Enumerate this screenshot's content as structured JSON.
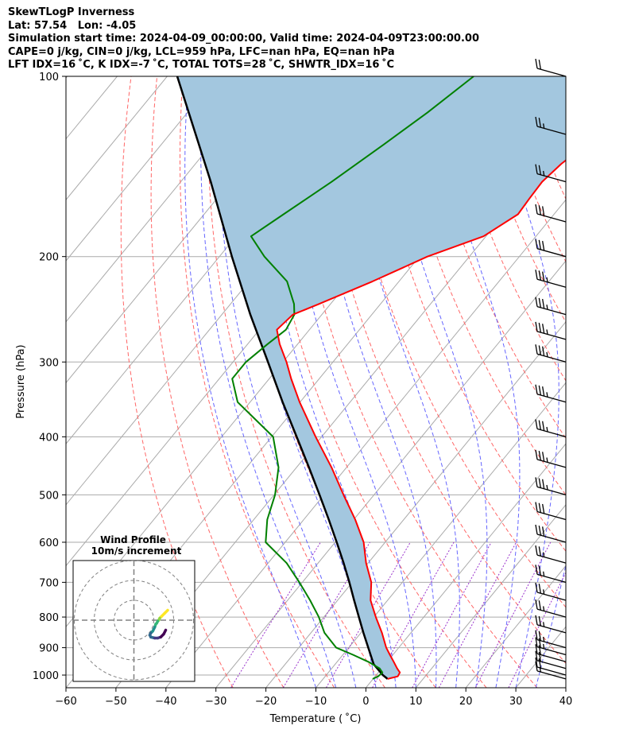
{
  "header": {
    "line1": "SkewTLogP Inverness",
    "line2": "Lat: 57.54   Lon: -4.05",
    "line3": "Simulation start time: 2024-04-09_00:00:00, Valid time: 2024-04-09T23:00:00.00",
    "line4": "CAPE=0 j/kg, CIN=0 j/kg, LCL=959 hPa, LFC=nan hPa, EQ=nan hPa",
    "line5": "LFT IDX=16 ˚C, K IDX=-7 ˚C, TOTAL TOTS=28 ˚C, SHWTR_IDX=16 ˚C"
  },
  "chart_data": {
    "type": "skewt",
    "xlabel": "Temperature ( ˚C)",
    "ylabel": "Pressure (hPa)",
    "xlim": [
      -60,
      40
    ],
    "ylim": [
      1050,
      100
    ],
    "y_scale": "log",
    "grid": true,
    "x_ticks": [
      -60,
      -50,
      -40,
      -30,
      -20,
      -10,
      0,
      10,
      20,
      30,
      40
    ],
    "x_tick_labels": [
      "−60",
      "−50",
      "−40",
      "−30",
      "−20",
      "−10",
      "0",
      "10",
      "20",
      "30",
      "40"
    ],
    "y_ticks": [
      100,
      200,
      300,
      400,
      500,
      600,
      700,
      800,
      900,
      1000
    ],
    "y_tick_labels": [
      "100",
      "200",
      "300",
      "400",
      "500",
      "600",
      "700",
      "800",
      "900",
      "1000"
    ],
    "colors": {
      "temperature": "#ff0000",
      "dewpoint": "#008000",
      "parcel": "#000000",
      "cin_fill": "#a3c7df",
      "dry_adiabats": "#ff6666",
      "moist_adiabats": "#6666ff",
      "mixing_ratio": "#9932cc",
      "isotherms": "#aaaaaa"
    },
    "series": [
      {
        "name": "",
        "kind": "temperature",
        "pressure": [
          1015,
          1005,
          990,
          975,
          950,
          925,
          900,
          850,
          800,
          750,
          700,
          650,
          600,
          550,
          500,
          450,
          400,
          350,
          320,
          300,
          280,
          265,
          250,
          240,
          220,
          200,
          185,
          170,
          160,
          150,
          140,
          130,
          120,
          110,
          100
        ],
        "temp": [
          2.9,
          4.5,
          4.3,
          3.1,
          1.3,
          -0.6,
          -2.5,
          -5.8,
          -9.6,
          -13.4,
          -16.2,
          -20.4,
          -24.3,
          -29.7,
          -36.1,
          -43.0,
          -51.2,
          -60.1,
          -65.6,
          -69.3,
          -73.6,
          -76.5,
          -75.8,
          -72.3,
          -65.3,
          -58.4,
          -50.5,
          -47.2,
          -47.5,
          -47.7,
          -46.8,
          -45.0,
          -43.1,
          -40.2,
          -38.1
        ]
      },
      {
        "name": "",
        "kind": "dewpoint",
        "pressure": [
          1015,
          1005,
          990,
          975,
          950,
          925,
          900,
          850,
          800,
          750,
          700,
          650,
          600,
          550,
          500,
          450,
          400,
          350,
          320,
          300,
          280,
          265,
          250,
          240,
          220,
          200,
          185,
          170,
          150,
          130,
          115,
          100
        ],
        "temp": [
          -0.1,
          0.6,
          0.8,
          -0.4,
          -3.8,
          -8.0,
          -12.5,
          -17.3,
          -21.0,
          -25.5,
          -30.6,
          -36.3,
          -43.9,
          -47.3,
          -49.8,
          -53.6,
          -59.7,
          -72.5,
          -77.4,
          -77.4,
          -76.0,
          -74.7,
          -75.5,
          -77.3,
          -82.4,
          -91.0,
          -97.0,
          -94.1,
          -89.8,
          -85.5,
          -82.0,
          -78.7
        ]
      },
      {
        "name": "",
        "kind": "parcel",
        "pressure": [
          1015,
          1000,
          959,
          900,
          850,
          800,
          750,
          700,
          650,
          600,
          550,
          500,
          450,
          400,
          350,
          300,
          250,
          200,
          150,
          100
        ],
        "temp": [
          2.9,
          1.3,
          -2.3,
          -6.1,
          -9.5,
          -13.0,
          -16.7,
          -20.6,
          -24.9,
          -29.7,
          -35.0,
          -40.9,
          -47.5,
          -55.0,
          -63.5,
          -73.0,
          -84.3,
          -97.5,
          -114.0,
          -138.0
        ]
      }
    ],
    "wind_barbs": {
      "pressure": [
        1015,
        1000,
        975,
        950,
        925,
        900,
        850,
        800,
        750,
        700,
        650,
        600,
        550,
        500,
        450,
        400,
        350,
        300,
        275,
        250,
        225,
        200,
        175,
        150,
        125,
        100
      ],
      "speed_kt": [
        15,
        20,
        20,
        20,
        25,
        25,
        25,
        25,
        25,
        25,
        25,
        30,
        30,
        35,
        35,
        35,
        35,
        35,
        35,
        35,
        35,
        30,
        30,
        25,
        25,
        20
      ]
    },
    "wind_profile": {
      "title": "Wind Profile",
      "subtitle": "10m/s increment",
      "ring_count": 3,
      "u": [
        -3.0,
        -4.5,
        -6.0,
        -7.0,
        -7.5,
        -8.0,
        -8.5,
        -9.0,
        -9.5,
        -10.5,
        -11.5,
        -12.0,
        -11.5,
        -9.5,
        -8.0,
        -6.5,
        -5.0,
        -4.0
      ],
      "v": [
        5.0,
        3.5,
        2.0,
        1.0,
        0.0,
        -0.5,
        -1.5,
        -2.0,
        -3.5,
        -5.5,
        -6.5,
        -7.5,
        -8.5,
        -9.0,
        -9.0,
        -8.5,
        -7.0,
        -5.0
      ],
      "colormap": [
        "#440154",
        "#443983",
        "#31688e",
        "#21918c",
        "#35b779",
        "#90d743",
        "#fde725"
      ]
    }
  }
}
